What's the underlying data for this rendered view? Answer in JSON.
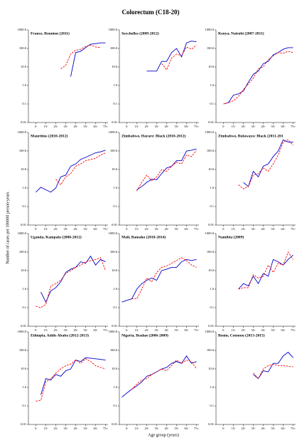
{
  "title": "Colorectum (C18-20)",
  "y_label": "Number of cases per 100000 person-years",
  "x_label": "Age group (years)",
  "chart_data": [
    {
      "type": "line",
      "title": "France, Reunion (2011)",
      "log_y": true,
      "ylim": [
        0.01,
        1000
      ],
      "yticks": [
        0.01,
        0.1,
        {
          "value": 1,
          "label": "1.0"
        },
        {
          "value": 10,
          "label": "10.0"
        },
        {
          "value": 100,
          "label": "100.0"
        },
        {
          "value": 1000,
          "label": "1000.0"
        }
      ],
      "categories": [
        null,
        "5-",
        null,
        "15-",
        null,
        "25-",
        null,
        "35-",
        null,
        "45-",
        null,
        "55-",
        null,
        "65-",
        null,
        "75+"
      ],
      "series": [
        {
          "color": "#0000cc",
          "dash": false,
          "values": [
            null,
            null,
            null,
            null,
            null,
            null,
            null,
            null,
            3,
            60,
            70,
            110,
            170,
            180,
            200,
            200
          ]
        },
        {
          "color": "#ff0000",
          "dash": true,
          "values": [
            null,
            null,
            null,
            null,
            null,
            null,
            8,
            12,
            50,
            80,
            90,
            130,
            150,
            120,
            110,
            null
          ]
        }
      ]
    },
    {
      "type": "line",
      "title": "Seychelles (2009-2012)",
      "log_y": true,
      "ylim": [
        0.01,
        1000
      ],
      "yticks": [
        0.01,
        0.1,
        {
          "value": 1,
          "label": "1.0"
        },
        {
          "value": 10,
          "label": "10.0"
        },
        {
          "value": 100,
          "label": "100.0"
        },
        {
          "value": 1000,
          "label": "1000.0"
        }
      ],
      "categories": [
        null,
        "5-",
        null,
        "15-",
        null,
        "25-",
        null,
        "35-",
        null,
        "45-",
        null,
        "55-",
        null,
        "65-",
        null,
        "75+"
      ],
      "series": [
        {
          "color": "#0000cc",
          "dash": false,
          "values": [
            null,
            null,
            null,
            null,
            null,
            6,
            6,
            6,
            20,
            20,
            60,
            100,
            35,
            200,
            250,
            230
          ]
        },
        {
          "color": "#ff0000",
          "dash": true,
          "values": [
            null,
            null,
            null,
            null,
            null,
            null,
            null,
            null,
            15,
            7,
            30,
            50,
            40,
            120,
            90,
            150
          ]
        }
      ]
    },
    {
      "type": "line",
      "title": "Kenya, Nairobi (2007-2011)",
      "log_y": true,
      "ylim": [
        0.01,
        1000
      ],
      "yticks": [
        0.01,
        0.1,
        {
          "value": 1,
          "label": "1.0"
        },
        {
          "value": 10,
          "label": "10.0"
        },
        {
          "value": 100,
          "label": "100.0"
        },
        {
          "value": 1000,
          "label": "1000.0"
        }
      ],
      "categories": [
        null,
        "5-",
        null,
        "15-",
        null,
        "25-",
        null,
        "35-",
        null,
        "45-",
        null,
        "55-",
        null,
        "65-",
        null,
        "75+"
      ],
      "series": [
        {
          "color": "#0000cc",
          "dash": false,
          "values": [
            null,
            0.1,
            0.12,
            0.3,
            0.35,
            0.5,
            1.5,
            4,
            6,
            15,
            20,
            45,
            60,
            90,
            110,
            110
          ]
        },
        {
          "color": "#ff0000",
          "dash": true,
          "values": [
            null,
            0.1,
            0.12,
            0.15,
            0.25,
            0.6,
            1.2,
            2.5,
            8,
            10,
            25,
            40,
            60,
            55,
            70,
            60
          ]
        }
      ]
    },
    {
      "type": "line",
      "title": "Mauritius (2010-2012)",
      "log_y": true,
      "ylim": [
        0.01,
        1000
      ],
      "yticks": [
        0.01,
        0.1,
        {
          "value": 1,
          "label": "1.0"
        },
        {
          "value": 10,
          "label": "10.0"
        },
        {
          "value": 100,
          "label": "100.0"
        },
        {
          "value": 1000,
          "label": "1000.0"
        }
      ],
      "categories": [
        null,
        "5-",
        null,
        "15-",
        null,
        "25-",
        null,
        "35-",
        null,
        "45-",
        null,
        "55-",
        null,
        "65-",
        null,
        "75+"
      ],
      "series": [
        {
          "color": "#0000cc",
          "dash": false,
          "values": [
            null,
            0.6,
            1.1,
            0.8,
            0.6,
            1,
            4,
            5,
            15,
            20,
            35,
            45,
            60,
            80,
            90,
            110
          ]
        },
        {
          "color": "#ff0000",
          "dash": true,
          "values": [
            null,
            null,
            null,
            null,
            null,
            3,
            1.5,
            4,
            6,
            15,
            20,
            30,
            35,
            40,
            60,
            80
          ]
        }
      ]
    },
    {
      "type": "line",
      "title": "Zimbabwe, Harare: Black (2010-2012)",
      "log_y": true,
      "ylim": [
        0.01,
        1000
      ],
      "yticks": [
        0.01,
        0.1,
        {
          "value": 1,
          "label": "1.0"
        },
        {
          "value": 10,
          "label": "10.0"
        },
        {
          "value": 100,
          "label": "100.0"
        },
        {
          "value": 1000,
          "label": "1000.0"
        }
      ],
      "categories": [
        null,
        "5-",
        null,
        "15-",
        null,
        "25-",
        null,
        "35-",
        null,
        "45-",
        null,
        "55-",
        null,
        "65-",
        null,
        "75+"
      ],
      "series": [
        {
          "color": "#0000cc",
          "dash": false,
          "values": [
            null,
            null,
            null,
            0.8,
            1.2,
            2,
            3,
            2.8,
            6,
            12,
            15,
            30,
            30,
            100,
            110,
            130
          ]
        },
        {
          "color": "#ff0000",
          "dash": true,
          "values": [
            null,
            null,
            null,
            0.7,
            2,
            5,
            2.5,
            4,
            10,
            8,
            15,
            25,
            20,
            60,
            50,
            110
          ]
        }
      ]
    },
    {
      "type": "line",
      "title": "Zimbabwe, Bulawayo: Black (2011-201",
      "log_y": true,
      "ylim": [
        0.01,
        1000
      ],
      "yticks": [
        0.01,
        0.1,
        {
          "value": 1,
          "label": "1.0"
        },
        {
          "value": 10,
          "label": "10.0"
        },
        {
          "value": 100,
          "label": "100.0"
        },
        {
          "value": 1000,
          "label": "1000.0"
        }
      ],
      "categories": [
        null,
        "5-",
        null,
        "15-",
        null,
        "25-",
        null,
        "35-",
        null,
        "45-",
        null,
        "55-",
        null,
        "65-",
        null,
        "75+"
      ],
      "series": [
        {
          "color": "#0000cc",
          "dash": false,
          "values": [
            null,
            null,
            null,
            null,
            null,
            2,
            1.2,
            8,
            4,
            15,
            20,
            50,
            100,
            400,
            300,
            300
          ]
        },
        {
          "color": "#ff0000",
          "dash": true,
          "values": [
            null,
            null,
            null,
            null,
            1.5,
            0.9,
            1.2,
            5,
            6,
            12,
            8,
            20,
            60,
            300,
            400,
            200
          ]
        }
      ]
    },
    {
      "type": "line",
      "title": "Uganda, Kampala (2008-2012)",
      "log_y": true,
      "ylim": [
        0.01,
        1000
      ],
      "yticks": [
        0.01,
        0.1,
        {
          "value": 1,
          "label": "1.0"
        },
        {
          "value": 10,
          "label": "10.0"
        },
        {
          "value": 100,
          "label": "100.0"
        },
        {
          "value": 1000,
          "label": "1000.0"
        }
      ],
      "categories": [
        null,
        "5-",
        null,
        "15-",
        null,
        "25-",
        null,
        "35-",
        null,
        "45-",
        null,
        "55-",
        null,
        "65-",
        null,
        "75+"
      ],
      "series": [
        {
          "color": "#0000cc",
          "dash": false,
          "values": [
            null,
            null,
            0.7,
            0.2,
            0.8,
            1.2,
            2.5,
            8,
            12,
            15,
            30,
            25,
            60,
            20,
            40,
            30
          ]
        },
        {
          "color": "#ff0000",
          "dash": true,
          "values": [
            null,
            0.12,
            0.1,
            0.15,
            1.5,
            2,
            3,
            7,
            10,
            15,
            20,
            30,
            35,
            40,
            50,
            10
          ]
        }
      ]
    },
    {
      "type": "line",
      "title": "Mali, Bamako (2010-2014)",
      "log_y": true,
      "ylim": [
        0.01,
        1000
      ],
      "yticks": [
        0.01,
        0.1,
        {
          "value": 1,
          "label": "1.0"
        },
        {
          "value": 10,
          "label": "10.0"
        },
        {
          "value": 100,
          "label": "100.0"
        },
        {
          "value": 1000,
          "label": "1000.0"
        }
      ],
      "categories": [
        null,
        "5-",
        null,
        "15-",
        null,
        "25-",
        null,
        "35-",
        null,
        "45-",
        null,
        "55-",
        null,
        "65-",
        null,
        "75+"
      ],
      "series": [
        {
          "color": "#0000cc",
          "dash": false,
          "values": [
            0.2,
            0.25,
            0.3,
            1,
            2,
            3,
            4,
            3,
            10,
            12,
            15,
            15,
            30,
            40,
            35,
            40
          ]
        },
        {
          "color": "#ff0000",
          "dash": true,
          "values": [
            null,
            null,
            0.3,
            0.3,
            1,
            4,
            2.5,
            8,
            15,
            18,
            25,
            35,
            50,
            35,
            20,
            15
          ]
        }
      ]
    },
    {
      "type": "line",
      "title": "Namibia (2009)",
      "log_y": true,
      "ylim": [
        0.01,
        1000
      ],
      "yticks": [
        0.01,
        0.1,
        {
          "value": 1,
          "label": "1.0"
        },
        {
          "value": 10,
          "label": "10.0"
        },
        {
          "value": 100,
          "label": "100.0"
        },
        {
          "value": 1000,
          "label": "1000.0"
        }
      ],
      "categories": [
        null,
        "5-",
        null,
        "15-",
        null,
        "25-",
        null,
        "35-",
        null,
        "45-",
        null,
        "55-",
        null,
        "65-",
        null,
        "75+"
      ],
      "series": [
        {
          "color": "#0000cc",
          "dash": false,
          "values": [
            null,
            null,
            null,
            null,
            1,
            2,
            1.5,
            5,
            2,
            7,
            5,
            40,
            30,
            20,
            40,
            70
          ]
        },
        {
          "color": "#ff0000",
          "dash": true,
          "values": [
            null,
            null,
            null,
            null,
            1,
            1.2,
            1.2,
            6,
            4,
            5,
            20,
            8,
            25,
            20,
            100,
            40
          ]
        }
      ]
    },
    {
      "type": "line",
      "title": "Ethiopia, Addis Ababa (2012-2013)",
      "log_y": true,
      "ylim": [
        0.01,
        1000
      ],
      "yticks": [
        0.01,
        0.1,
        {
          "value": 1,
          "label": "1.0"
        },
        {
          "value": 10,
          "label": "10.0"
        },
        {
          "value": 100,
          "label": "100.0"
        },
        {
          "value": 1000,
          "label": "1000.0"
        }
      ],
      "categories": [
        null,
        "5-",
        null,
        "15-",
        null,
        "25-",
        null,
        "35-",
        null,
        "45-",
        null,
        "55-",
        null,
        "65-",
        null,
        "75+"
      ],
      "series": [
        {
          "color": "#0000cc",
          "dash": false,
          "values": [
            null,
            null,
            0.4,
            3,
            2.5,
            5,
            4,
            8,
            10,
            30,
            25,
            40,
            38,
            35,
            33,
            30
          ]
        },
        {
          "color": "#ff0000",
          "dash": true,
          "values": [
            null,
            0.18,
            0.2,
            2,
            3,
            6,
            10,
            15,
            18,
            30,
            20,
            35,
            25,
            15,
            12,
            10
          ]
        }
      ]
    },
    {
      "type": "line",
      "title": "Nigeria, Ibadan (2006-2009)",
      "log_y": true,
      "ylim": [
        0.01,
        1000
      ],
      "yticks": [
        0.01,
        0.1,
        {
          "value": 1,
          "label": "1.0"
        },
        {
          "value": 10,
          "label": "10.0"
        },
        {
          "value": 100,
          "label": "100.0"
        },
        {
          "value": 1000,
          "label": "1000.0"
        }
      ],
      "categories": [
        null,
        "5-",
        null,
        "15-",
        null,
        "25-",
        null,
        "35-",
        null,
        "45-",
        null,
        "55-",
        null,
        "65-",
        null,
        "75+"
      ],
      "series": [
        {
          "color": "#0000cc",
          "dash": false,
          "values": [
            0.3,
            0.5,
            0.8,
            1.2,
            2,
            4,
            5,
            7,
            10,
            12,
            20,
            25,
            20,
            50,
            20,
            25
          ]
        },
        {
          "color": "#ff0000",
          "dash": true,
          "values": [
            null,
            null,
            0.8,
            1.5,
            2.5,
            3,
            5,
            7,
            10,
            8,
            15,
            30,
            20,
            30,
            25,
            10
          ]
        }
      ]
    },
    {
      "type": "line",
      "title": "Benin, Cotonou (2013-2015)",
      "log_y": true,
      "ylim": [
        0.01,
        1000
      ],
      "yticks": [
        0.01,
        0.1,
        {
          "value": 1,
          "label": "1.0"
        },
        {
          "value": 10,
          "label": "10.0"
        },
        {
          "value": 100,
          "label": "100.0"
        },
        {
          "value": 1000,
          "label": "1000.0"
        }
      ],
      "categories": [
        null,
        "5-",
        null,
        "15-",
        null,
        "25-",
        null,
        "35-",
        null,
        "45-",
        null,
        "55-",
        null,
        "65-",
        null,
        "75+"
      ],
      "series": [
        {
          "color": "#0000cc",
          "dash": false,
          "values": [
            null,
            null,
            null,
            null,
            null,
            null,
            null,
            5,
            3,
            8,
            7,
            20,
            20,
            50,
            80,
            40
          ]
        },
        {
          "color": "#ff0000",
          "dash": true,
          "values": [
            null,
            null,
            null,
            null,
            null,
            null,
            null,
            6,
            3,
            10,
            15,
            18,
            15,
            15,
            14,
            13
          ]
        }
      ]
    }
  ]
}
